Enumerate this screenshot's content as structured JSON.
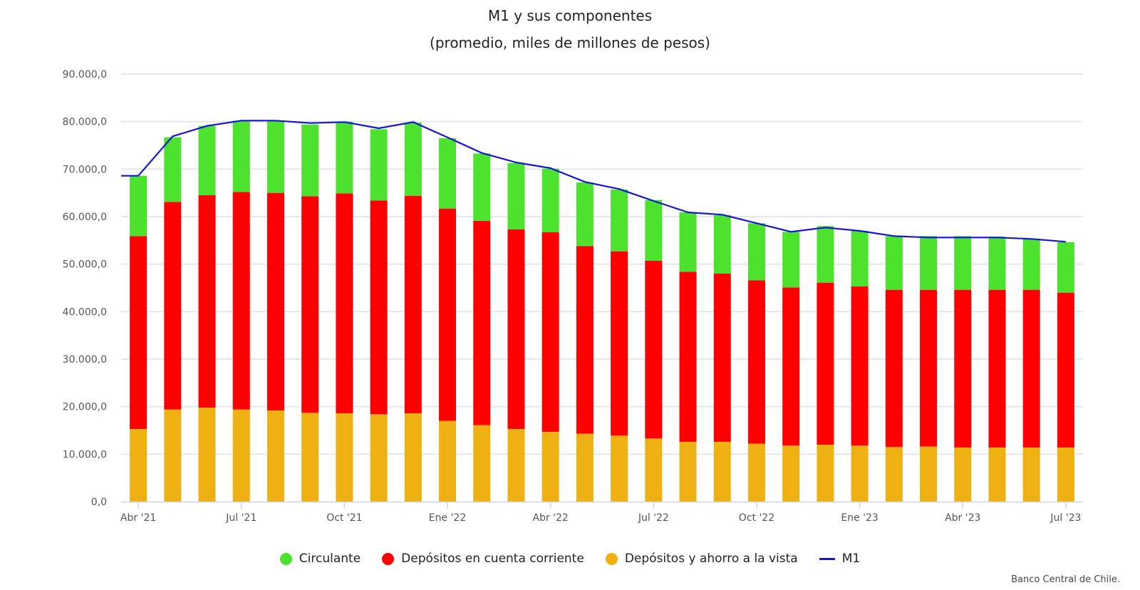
{
  "chart_data": {
    "type": "bar",
    "stacked": true,
    "title": "M1 y sus componentes",
    "subtitle": "(promedio, miles de millones de pesos)",
    "ylim": [
      0,
      90000
    ],
    "y_tick_values": [
      0,
      10000,
      20000,
      30000,
      40000,
      50000,
      60000,
      70000,
      80000,
      90000
    ],
    "y_tick_labels": [
      "0,0",
      "10.000,0",
      "20.000,0",
      "30.000,0",
      "40.000,0",
      "50.000,0",
      "60.000,0",
      "70.000,0",
      "80.000,0",
      "90.000,0"
    ],
    "categories": [
      "Abr '21",
      "May '21",
      "Jun '21",
      "Jul '21",
      "Ago '21",
      "Sep '21",
      "Oct '21",
      "Nov '21",
      "Dic '21",
      "Ene '22",
      "Feb '22",
      "Mar '22",
      "Abr '22",
      "May '22",
      "Jun '22",
      "Jul '22",
      "Ago '22",
      "Sep '22",
      "Oct '22",
      "Nov '22",
      "Dic '22",
      "Ene '23",
      "Feb '23",
      "Mar '23",
      "Abr '23",
      "May '23",
      "Jun '23",
      "Jul '23"
    ],
    "x_tick_labels": [
      {
        "index": 0,
        "label": "Abr '21"
      },
      {
        "index": 3,
        "label": "Jul '21"
      },
      {
        "index": 6,
        "label": "Oct '21"
      },
      {
        "index": 9,
        "label": "Ene '22"
      },
      {
        "index": 12,
        "label": "Abr '22"
      },
      {
        "index": 15,
        "label": "Jul '22"
      },
      {
        "index": 18,
        "label": "Oct '22"
      },
      {
        "index": 21,
        "label": "Ene '23"
      },
      {
        "index": 24,
        "label": "Abr '23"
      },
      {
        "index": 27,
        "label": "Jul '23"
      }
    ],
    "series": [
      {
        "name": "Depósitos y ahorro a la vista",
        "color": "#eeb111",
        "values": [
          15300,
          19400,
          19800,
          19400,
          19200,
          18700,
          18600,
          18400,
          18600,
          17000,
          16100,
          15300,
          14700,
          14300,
          13900,
          13300,
          12600,
          12600,
          12200,
          11800,
          12000,
          11800,
          11500,
          11600,
          11400,
          11400,
          11400,
          11400
        ]
      },
      {
        "name": "Depósitos en cuenta corriente",
        "color": "#ff0000",
        "values": [
          40600,
          43700,
          44700,
          45800,
          45800,
          45600,
          46300,
          45000,
          45800,
          44700,
          43000,
          42000,
          42000,
          39500,
          38800,
          37400,
          35800,
          35400,
          34400,
          33300,
          34100,
          33500,
          33100,
          33000,
          33200,
          33200,
          33200,
          32600
        ]
      },
      {
        "name": "Circulante",
        "color": "#4ce22d",
        "values": [
          12700,
          13600,
          14600,
          15000,
          15200,
          15100,
          15100,
          15000,
          15400,
          14800,
          14200,
          14000,
          13400,
          13400,
          13000,
          12800,
          12500,
          12300,
          12000,
          11700,
          11900,
          11700,
          11300,
          11300,
          11300,
          11200,
          10700,
          10600
        ]
      },
      {
        "name": "M1",
        "color": "#1414d8",
        "type": "line",
        "values": [
          68600,
          76900,
          79100,
          80200,
          80200,
          79700,
          79900,
          78600,
          79900,
          76700,
          73400,
          71400,
          70200,
          67300,
          65800,
          63300,
          60900,
          60400,
          58600,
          56800,
          57700,
          57000,
          55900,
          55600,
          55600,
          55600,
          55300,
          54700
        ]
      }
    ],
    "legend": [
      {
        "name": "Circulante",
        "color": "#4ce22d",
        "symbol": "dot"
      },
      {
        "name": "Depósitos en cuenta corriente",
        "color": "#ff0000",
        "symbol": "dot"
      },
      {
        "name": "Depósitos y ahorro a la vista",
        "color": "#eeb111",
        "symbol": "dot"
      },
      {
        "name": "M1",
        "color": "#1414d8",
        "symbol": "line"
      }
    ],
    "legend_position": "bottom-center",
    "grid": true
  },
  "credits": "Banco Central de Chile."
}
